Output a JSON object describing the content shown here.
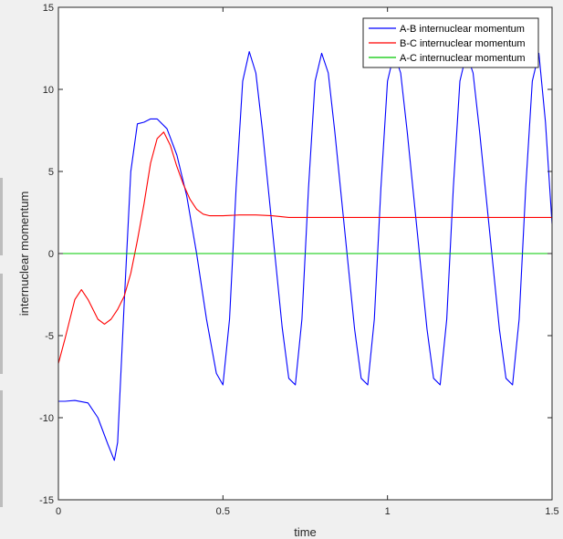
{
  "chart_data": {
    "type": "line",
    "title": "",
    "xlabel": "time",
    "ylabel": "internuclear momentum",
    "xlim": [
      0,
      1.5
    ],
    "ylim": [
      -15,
      15
    ],
    "xticks": [
      0,
      0.5,
      1,
      1.5
    ],
    "xtick_labels": [
      "0",
      "0.5",
      "1",
      "1.5"
    ],
    "yticks": [
      -15,
      -10,
      -5,
      0,
      5,
      10,
      15
    ],
    "ytick_labels": [
      "-15",
      "-10",
      "-5",
      "0",
      "5",
      "10",
      "15"
    ],
    "grid": false,
    "legend_position": "top-right",
    "series": [
      {
        "name": "A-B internuclear momentum",
        "color": "#0000ff",
        "x": [
          0,
          0.02,
          0.05,
          0.09,
          0.12,
          0.15,
          0.17,
          0.18,
          0.2,
          0.22,
          0.24,
          0.26,
          0.28,
          0.3,
          0.33,
          0.36,
          0.39,
          0.42,
          0.45,
          0.48,
          0.5,
          0.52,
          0.54,
          0.56,
          0.58,
          0.6,
          0.62,
          0.64,
          0.66,
          0.68,
          0.7,
          0.72,
          0.74,
          0.76,
          0.78,
          0.8,
          0.82,
          0.84,
          0.86,
          0.88,
          0.9,
          0.92,
          0.94,
          0.96,
          0.98,
          1.0,
          1.02,
          1.04,
          1.06,
          1.08,
          1.1,
          1.12,
          1.14,
          1.16,
          1.18,
          1.2,
          1.22,
          1.24,
          1.26,
          1.28,
          1.3,
          1.32,
          1.34,
          1.36,
          1.38,
          1.4,
          1.42,
          1.44,
          1.46,
          1.48,
          1.5
        ],
        "y": [
          -9.0,
          -9.0,
          -8.95,
          -9.1,
          -10.0,
          -11.6,
          -12.6,
          -11.5,
          -3.0,
          5.0,
          7.9,
          8.0,
          8.2,
          8.2,
          7.6,
          6.0,
          3.5,
          0.0,
          -4.0,
          -7.3,
          -8.0,
          -4.0,
          4.0,
          10.5,
          12.3,
          11.0,
          7.5,
          3.5,
          -0.5,
          -4.5,
          -7.6,
          -8.0,
          -4.0,
          4.0,
          10.5,
          12.2,
          11.0,
          7.4,
          3.4,
          -0.6,
          -4.6,
          -7.6,
          -8.0,
          -4.0,
          4.0,
          10.5,
          12.2,
          11.0,
          7.4,
          3.4,
          -0.6,
          -4.6,
          -7.6,
          -8.0,
          -4.0,
          4.0,
          10.5,
          12.2,
          11.0,
          7.4,
          3.4,
          -0.6,
          -4.6,
          -7.6,
          -8.0,
          -4.0,
          4.0,
          10.5,
          12.2,
          8.0,
          1.8
        ]
      },
      {
        "name": "B-C internuclear momentum",
        "color": "#ff0000",
        "x": [
          0,
          0.02,
          0.05,
          0.07,
          0.09,
          0.12,
          0.14,
          0.16,
          0.18,
          0.2,
          0.22,
          0.24,
          0.26,
          0.28,
          0.3,
          0.32,
          0.34,
          0.36,
          0.38,
          0.4,
          0.42,
          0.44,
          0.46,
          0.5,
          0.55,
          0.6,
          0.65,
          0.7,
          0.8,
          1.0,
          1.2,
          1.4,
          1.5
        ],
        "y": [
          -6.7,
          -5.2,
          -2.8,
          -2.2,
          -2.8,
          -4.0,
          -4.3,
          -4.0,
          -3.4,
          -2.6,
          -1.2,
          0.8,
          3.0,
          5.5,
          7.0,
          7.4,
          6.6,
          5.3,
          4.2,
          3.3,
          2.7,
          2.4,
          2.3,
          2.3,
          2.35,
          2.35,
          2.3,
          2.2,
          2.2,
          2.2,
          2.2,
          2.2,
          2.2
        ]
      },
      {
        "name": "A-C internuclear momentum",
        "color": "#00c800",
        "x": [
          0,
          1.5
        ],
        "y": [
          0,
          0
        ]
      }
    ]
  }
}
